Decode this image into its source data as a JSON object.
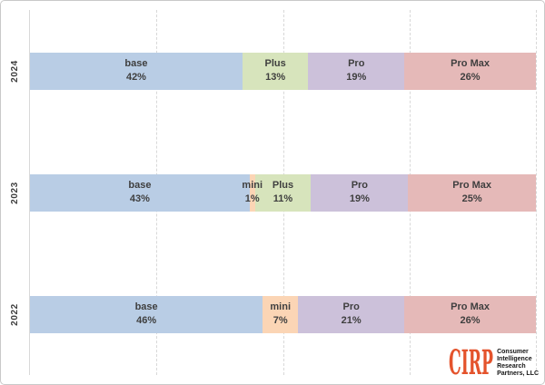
{
  "chart_data": {
    "type": "bar",
    "orientation": "horizontal-stacked",
    "title": "",
    "xlabel": "",
    "ylabel": "",
    "xlim": [
      0,
      100
    ],
    "gridlines_percent": [
      25,
      50,
      75,
      100
    ],
    "grid_style": "dashed-vertical",
    "categories": [
      "2024",
      "2023",
      "2022"
    ],
    "series_names": [
      "base",
      "mini",
      "Plus",
      "Pro",
      "Pro Max"
    ],
    "rows": [
      {
        "year": "2024",
        "segments": [
          {
            "label": "base",
            "value": 42,
            "display": "42%"
          },
          {
            "label": "Plus",
            "value": 13,
            "display": "13%"
          },
          {
            "label": "Pro",
            "value": 19,
            "display": "19%"
          },
          {
            "label": "Pro Max",
            "value": 26,
            "display": "26%"
          }
        ]
      },
      {
        "year": "2023",
        "segments": [
          {
            "label": "base",
            "value": 43,
            "display": "43%"
          },
          {
            "label": "mini",
            "value": 1,
            "display": "1%"
          },
          {
            "label": "Plus",
            "value": 11,
            "display": "11%"
          },
          {
            "label": "Pro",
            "value": 19,
            "display": "19%"
          },
          {
            "label": "Pro Max",
            "value": 25,
            "display": "25%"
          }
        ]
      },
      {
        "year": "2022",
        "segments": [
          {
            "label": "base",
            "value": 46,
            "display": "46%"
          },
          {
            "label": "mini",
            "value": 7,
            "display": "7%"
          },
          {
            "label": "Pro",
            "value": 21,
            "display": "21%"
          },
          {
            "label": "Pro Max",
            "value": 26,
            "display": "26%"
          }
        ]
      }
    ],
    "colors": {
      "base": "#b9cde5",
      "mini": "#fbd5b5",
      "Plus": "#d7e4bc",
      "Pro": "#ccc1da",
      "Pro Max": "#e5b9b8"
    },
    "label_text_color": "#3f3f3f",
    "gridline_color": "#d8d8d8"
  },
  "logo": {
    "name": "CIRP",
    "accent_color": "#e4532c",
    "lines": [
      "Consumer",
      "Intelligence",
      "Research",
      "Partners, LLC"
    ]
  }
}
